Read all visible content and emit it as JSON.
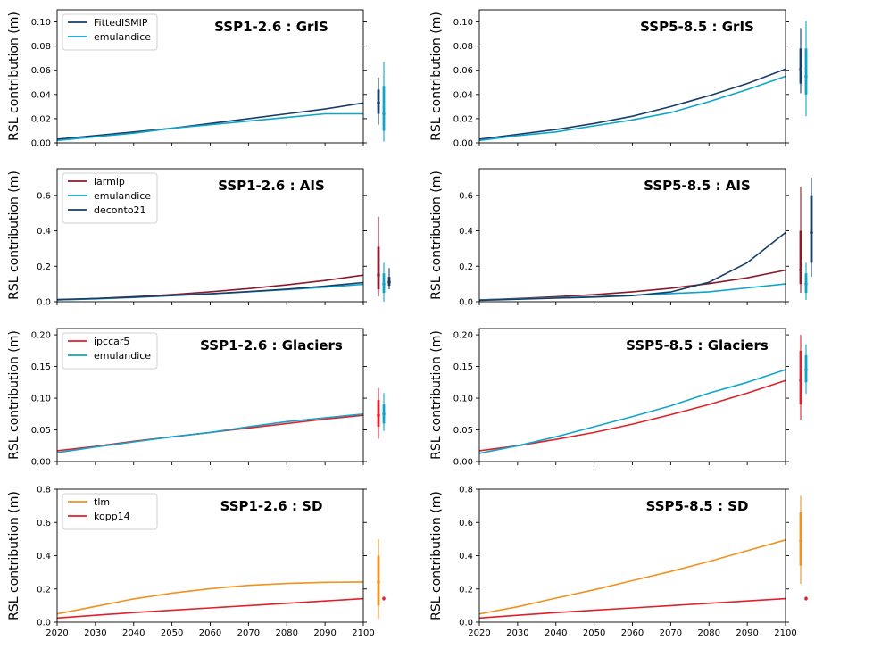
{
  "colors": {
    "FittedISMIP": "#1a3d66",
    "emulandice": "#0ea5c9",
    "larmip": "#8b1a2b",
    "deconto21": "#1a3d66",
    "ipccar5": "#e0202a",
    "tlm": "#f0921e",
    "kopp14": "#e0202a"
  },
  "chart_data": [
    {
      "type": "line",
      "title": "SSP1-2.6 : GrIS",
      "ylabel": "RSL contribution (m)",
      "x": [
        2020,
        2030,
        2040,
        2050,
        2060,
        2070,
        2080,
        2090,
        2100
      ],
      "xlim": [
        2020,
        2100
      ],
      "ylim": [
        0,
        0.11
      ],
      "yticks": [
        "0.00",
        "0.02",
        "0.04",
        "0.06",
        "0.08",
        "0.10"
      ],
      "legend": "top-left",
      "series": [
        {
          "name": "FittedISMIP",
          "values": [
            0.003,
            0.006,
            0.009,
            0.012,
            0.016,
            0.02,
            0.024,
            0.028,
            0.033
          ]
        },
        {
          "name": "emulandice",
          "values": [
            0.002,
            0.005,
            0.008,
            0.012,
            0.015,
            0.018,
            0.021,
            0.024,
            0.024
          ]
        }
      ],
      "ranges": [
        {
          "name": "FittedISMIP",
          "p05": 0.015,
          "p17": 0.024,
          "median": 0.033,
          "p83": 0.044,
          "p95": 0.054
        },
        {
          "name": "emulandice",
          "p05": 0.001,
          "p17": 0.01,
          "median": 0.024,
          "p83": 0.047,
          "p95": 0.067
        }
      ]
    },
    {
      "type": "line",
      "title": "SSP5-8.5 : GrIS",
      "ylabel": "RSL contribution (m)",
      "x": [
        2020,
        2030,
        2040,
        2050,
        2060,
        2070,
        2080,
        2090,
        2100
      ],
      "xlim": [
        2020,
        2100
      ],
      "ylim": [
        0,
        0.11
      ],
      "yticks": [
        "0.00",
        "0.02",
        "0.04",
        "0.06",
        "0.08",
        "0.10"
      ],
      "series": [
        {
          "name": "FittedISMIP",
          "values": [
            0.003,
            0.007,
            0.011,
            0.016,
            0.022,
            0.03,
            0.039,
            0.049,
            0.061
          ]
        },
        {
          "name": "emulandice",
          "values": [
            0.002,
            0.006,
            0.009,
            0.014,
            0.019,
            0.025,
            0.034,
            0.044,
            0.055
          ]
        }
      ],
      "ranges": [
        {
          "name": "FittedISMIP",
          "p05": 0.041,
          "p17": 0.049,
          "median": 0.061,
          "p83": 0.078,
          "p95": 0.095
        },
        {
          "name": "emulandice",
          "p05": 0.022,
          "p17": 0.04,
          "median": 0.055,
          "p83": 0.078,
          "p95": 0.101
        }
      ]
    },
    {
      "type": "line",
      "title": "SSP1-2.6 : AIS",
      "ylabel": "RSL contribution (m)",
      "x": [
        2020,
        2030,
        2040,
        2050,
        2060,
        2070,
        2080,
        2090,
        2100
      ],
      "xlim": [
        2020,
        2100
      ],
      "ylim": [
        0,
        0.75
      ],
      "yticks": [
        "0.0",
        "0.2",
        "0.4",
        "0.6"
      ],
      "legend": "top-left",
      "series": [
        {
          "name": "larmip",
          "values": [
            0.01,
            0.018,
            0.028,
            0.04,
            0.056,
            0.074,
            0.095,
            0.12,
            0.15
          ]
        },
        {
          "name": "emulandice",
          "values": [
            0.01,
            0.016,
            0.024,
            0.034,
            0.044,
            0.056,
            0.068,
            0.082,
            0.098
          ]
        },
        {
          "name": "deconto21",
          "values": [
            0.012,
            0.018,
            0.026,
            0.035,
            0.045,
            0.057,
            0.071,
            0.088,
            0.108
          ]
        }
      ],
      "ranges": [
        {
          "name": "larmip",
          "p05": 0.03,
          "p17": 0.07,
          "median": 0.15,
          "p83": 0.31,
          "p95": 0.48
        },
        {
          "name": "emulandice",
          "p05": 0.0,
          "p17": 0.05,
          "median": 0.1,
          "p83": 0.16,
          "p95": 0.22
        },
        {
          "name": "deconto21",
          "p05": 0.07,
          "p17": 0.09,
          "median": 0.11,
          "p83": 0.14,
          "p95": 0.19
        }
      ]
    },
    {
      "type": "line",
      "title": "SSP5-8.5 : AIS",
      "ylabel": "RSL contribution (m)",
      "x": [
        2020,
        2030,
        2040,
        2050,
        2060,
        2070,
        2080,
        2090,
        2100
      ],
      "xlim": [
        2020,
        2100
      ],
      "ylim": [
        0,
        0.75
      ],
      "yticks": [
        "0.0",
        "0.2",
        "0.4",
        "0.6"
      ],
      "series": [
        {
          "name": "larmip",
          "values": [
            0.01,
            0.018,
            0.028,
            0.04,
            0.056,
            0.076,
            0.102,
            0.135,
            0.178
          ]
        },
        {
          "name": "emulandice",
          "values": [
            0.01,
            0.016,
            0.022,
            0.028,
            0.036,
            0.046,
            0.056,
            0.078,
            0.1
          ]
        },
        {
          "name": "deconto21",
          "values": [
            0.008,
            0.014,
            0.02,
            0.026,
            0.034,
            0.055,
            0.11,
            0.22,
            0.39
          ]
        }
      ],
      "ranges": [
        {
          "name": "larmip",
          "p05": 0.05,
          "p17": 0.1,
          "median": 0.18,
          "p83": 0.4,
          "p95": 0.65
        },
        {
          "name": "emulandice",
          "p05": 0.01,
          "p17": 0.05,
          "median": 0.1,
          "p83": 0.16,
          "p95": 0.22
        },
        {
          "name": "deconto21",
          "p05": 0.14,
          "p17": 0.22,
          "median": 0.39,
          "p83": 0.6,
          "p95": 0.7
        }
      ]
    },
    {
      "type": "line",
      "title": "SSP1-2.6 : Glaciers",
      "ylabel": "RSL contribution (m)",
      "x": [
        2020,
        2030,
        2040,
        2050,
        2060,
        2070,
        2080,
        2090,
        2100
      ],
      "xlim": [
        2020,
        2100
      ],
      "ylim": [
        0,
        0.21
      ],
      "yticks": [
        "0.00",
        "0.05",
        "0.10",
        "0.15",
        "0.20"
      ],
      "legend": "top-left",
      "series": [
        {
          "name": "ipccar5",
          "values": [
            0.017,
            0.024,
            0.032,
            0.039,
            0.046,
            0.053,
            0.06,
            0.067,
            0.073
          ]
        },
        {
          "name": "emulandice",
          "values": [
            0.014,
            0.023,
            0.031,
            0.039,
            0.046,
            0.055,
            0.063,
            0.069,
            0.075
          ]
        }
      ],
      "ranges": [
        {
          "name": "ipccar5",
          "p05": 0.036,
          "p17": 0.055,
          "median": 0.073,
          "p83": 0.097,
          "p95": 0.116
        },
        {
          "name": "emulandice",
          "p05": 0.048,
          "p17": 0.06,
          "median": 0.075,
          "p83": 0.09,
          "p95": 0.108
        }
      ]
    },
    {
      "type": "line",
      "title": "SSP5-8.5 : Glaciers",
      "ylabel": "RSL contribution (m)",
      "x": [
        2020,
        2030,
        2040,
        2050,
        2060,
        2070,
        2080,
        2090,
        2100
      ],
      "xlim": [
        2020,
        2100
      ],
      "ylim": [
        0,
        0.21
      ],
      "yticks": [
        "0.00",
        "0.05",
        "0.10",
        "0.15",
        "0.20"
      ],
      "series": [
        {
          "name": "ipccar5",
          "values": [
            0.017,
            0.025,
            0.035,
            0.046,
            0.059,
            0.074,
            0.09,
            0.108,
            0.128
          ]
        },
        {
          "name": "emulandice",
          "values": [
            0.013,
            0.025,
            0.039,
            0.055,
            0.071,
            0.088,
            0.108,
            0.125,
            0.145
          ]
        }
      ],
      "ranges": [
        {
          "name": "ipccar5",
          "p05": 0.066,
          "p17": 0.09,
          "median": 0.128,
          "p83": 0.175,
          "p95": 0.2
        },
        {
          "name": "emulandice",
          "p05": 0.107,
          "p17": 0.125,
          "median": 0.145,
          "p83": 0.168,
          "p95": 0.185
        }
      ]
    },
    {
      "type": "line",
      "title": "SSP1-2.6 : SD",
      "ylabel": "RSL contribution (m)",
      "x": [
        2020,
        2030,
        2040,
        2050,
        2060,
        2070,
        2080,
        2090,
        2100
      ],
      "xlim": [
        2020,
        2100
      ],
      "ylim": [
        0,
        0.8
      ],
      "yticks": [
        "0.0",
        "0.2",
        "0.4",
        "0.6",
        "0.8"
      ],
      "xticks": [
        "2020",
        "2030",
        "2040",
        "2050",
        "2060",
        "2070",
        "2080",
        "2090",
        "2100"
      ],
      "legend": "top-left",
      "series": [
        {
          "name": "tlm",
          "values": [
            0.05,
            0.095,
            0.14,
            0.175,
            0.202,
            0.222,
            0.233,
            0.24,
            0.242
          ]
        },
        {
          "name": "kopp14",
          "values": [
            0.025,
            0.042,
            0.058,
            0.072,
            0.086,
            0.1,
            0.114,
            0.128,
            0.142
          ]
        }
      ],
      "ranges": [
        {
          "name": "tlm",
          "p05": 0.02,
          "p17": 0.1,
          "median": 0.24,
          "p83": 0.4,
          "p95": 0.5
        },
        {
          "name": "kopp14",
          "p05": 0.13,
          "p17": 0.135,
          "median": 0.142,
          "p83": 0.15,
          "p95": 0.155
        }
      ]
    },
    {
      "type": "line",
      "title": "SSP5-8.5 : SD",
      "ylabel": "RSL contribution (m)",
      "x": [
        2020,
        2030,
        2040,
        2050,
        2060,
        2070,
        2080,
        2090,
        2100
      ],
      "xlim": [
        2020,
        2100
      ],
      "ylim": [
        0,
        0.8
      ],
      "yticks": [
        "0.0",
        "0.2",
        "0.4",
        "0.6",
        "0.8"
      ],
      "xticks": [
        "2020",
        "2030",
        "2040",
        "2050",
        "2060",
        "2070",
        "2080",
        "2090",
        "2100"
      ],
      "series": [
        {
          "name": "tlm",
          "values": [
            0.05,
            0.093,
            0.145,
            0.195,
            0.25,
            0.305,
            0.365,
            0.43,
            0.495
          ]
        },
        {
          "name": "kopp14",
          "values": [
            0.025,
            0.042,
            0.058,
            0.072,
            0.086,
            0.1,
            0.114,
            0.128,
            0.142
          ]
        }
      ],
      "ranges": [
        {
          "name": "tlm",
          "p05": 0.23,
          "p17": 0.34,
          "median": 0.49,
          "p83": 0.66,
          "p95": 0.76
        },
        {
          "name": "kopp14",
          "p05": 0.13,
          "p17": 0.135,
          "median": 0.142,
          "p83": 0.15,
          "p95": 0.155
        }
      ]
    }
  ]
}
